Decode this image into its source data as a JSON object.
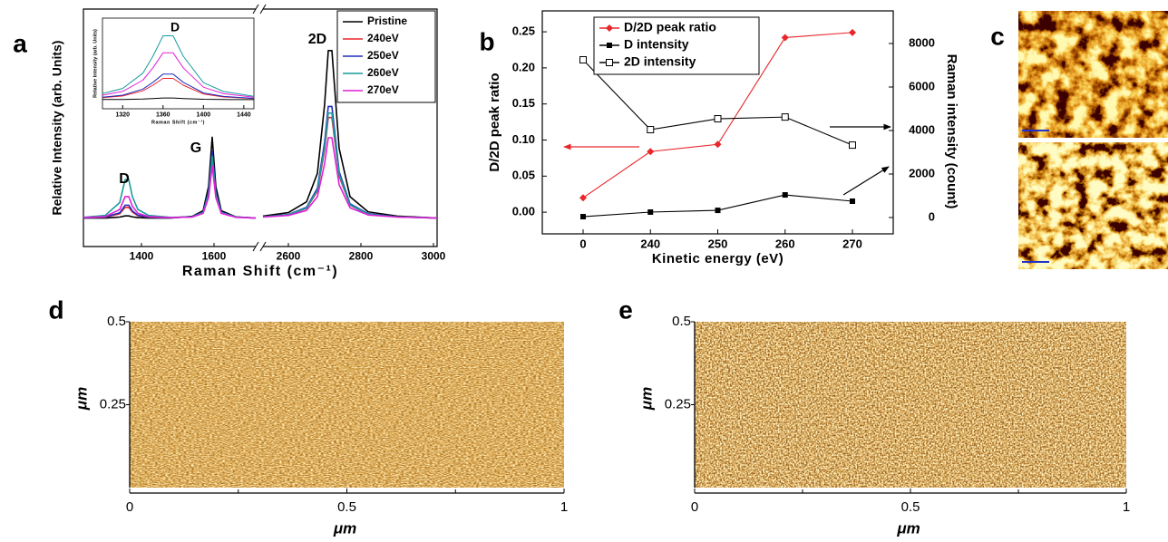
{
  "chart_data": [
    {
      "type": "line",
      "label": "a",
      "x_label": "Raman Shift (cm⁻¹)",
      "y_label": "Relative Intensity (arb. Units)",
      "x": [
        1240,
        1300,
        1340,
        1355,
        1365,
        1375,
        1390,
        1420,
        1480,
        1540,
        1570,
        1585,
        1595,
        1605,
        1620,
        1660,
        1715,
        2530,
        2600,
        2650,
        2680,
        2700,
        2710,
        2720,
        2740,
        2770,
        2820,
        2900,
        3010
      ],
      "xlim": [
        1240,
        3010
      ],
      "xbreak": [
        1715,
        2530
      ],
      "xticks": [
        1400,
        1600,
        2600,
        2800,
        3000
      ],
      "ylim": [
        0,
        1
      ],
      "annotations": [
        "D",
        "G",
        "2D"
      ],
      "legend": "upper right",
      "series": [
        {
          "name": "Pristine",
          "color": "#000000",
          "values": [
            0.12,
            0.12,
            0.124,
            0.129,
            0.129,
            0.125,
            0.122,
            0.12,
            0.12,
            0.127,
            0.151,
            0.253,
            0.46,
            0.253,
            0.151,
            0.125,
            0.12,
            0.128,
            0.143,
            0.188,
            0.308,
            0.6,
            0.825,
            0.825,
            0.413,
            0.21,
            0.146,
            0.128,
            0.12
          ]
        },
        {
          "name": "240eV",
          "color": "#e8262b",
          "values": [
            0.121,
            0.123,
            0.138,
            0.165,
            0.165,
            0.145,
            0.13,
            0.123,
            0.121,
            0.125,
            0.143,
            0.218,
            0.37,
            0.218,
            0.143,
            0.124,
            0.12,
            0.125,
            0.134,
            0.161,
            0.233,
            0.408,
            0.543,
            0.543,
            0.296,
            0.174,
            0.136,
            0.125,
            0.12
          ]
        },
        {
          "name": "250eV",
          "color": "#1f2fbf",
          "values": [
            0.121,
            0.124,
            0.142,
            0.174,
            0.174,
            0.15,
            0.132,
            0.124,
            0.121,
            0.126,
            0.145,
            0.229,
            0.4,
            0.229,
            0.145,
            0.124,
            0.12,
            0.125,
            0.135,
            0.165,
            0.245,
            0.44,
            0.59,
            0.59,
            0.315,
            0.18,
            0.138,
            0.125,
            0.12
          ]
        },
        {
          "name": "260eV",
          "color": "#1a9b9b",
          "values": [
            0.123,
            0.131,
            0.185,
            0.282,
            0.282,
            0.21,
            0.156,
            0.131,
            0.123,
            0.125,
            0.143,
            0.221,
            0.38,
            0.221,
            0.143,
            0.124,
            0.12,
            0.125,
            0.134,
            0.162,
            0.238,
            0.421,
            0.562,
            0.562,
            0.303,
            0.176,
            0.136,
            0.125,
            0.12
          ]
        },
        {
          "name": "270eV",
          "color": "#e020d8",
          "values": [
            0.122,
            0.126,
            0.156,
            0.21,
            0.21,
            0.17,
            0.14,
            0.126,
            0.122,
            0.124,
            0.14,
            0.206,
            0.34,
            0.206,
            0.14,
            0.123,
            0.12,
            0.124,
            0.131,
            0.152,
            0.21,
            0.35,
            0.458,
            0.458,
            0.26,
            0.163,
            0.133,
            0.124,
            0.12
          ]
        }
      ]
    },
    {
      "type": "line",
      "x_label": "Raman Shift (cm⁻¹)",
      "y_label": "Relative Intensity (arb. Units)",
      "x": [
        1300,
        1320,
        1340,
        1350,
        1360,
        1370,
        1380,
        1400,
        1420,
        1450
      ],
      "xlim": [
        1300,
        1450
      ],
      "xticks": [
        1320,
        1360,
        1400,
        1440
      ],
      "ylim": [
        0,
        1
      ],
      "annotations": [
        "D"
      ],
      "series": [
        {
          "color": "#000000",
          "values": [
            0.102,
            0.103,
            0.108,
            0.113,
            0.119,
            0.119,
            0.113,
            0.105,
            0.102,
            0.101
          ]
        },
        {
          "color": "#e8262b",
          "values": [
            0.123,
            0.141,
            0.198,
            0.26,
            0.335,
            0.335,
            0.26,
            0.163,
            0.13,
            0.113
          ]
        },
        {
          "color": "#1f2fbf",
          "values": [
            0.127,
            0.15,
            0.217,
            0.292,
            0.382,
            0.382,
            0.292,
            0.175,
            0.136,
            0.115
          ]
        },
        {
          "color": "#1a9b9b",
          "values": [
            0.168,
            0.224,
            0.393,
            0.58,
            0.805,
            0.805,
            0.58,
            0.288,
            0.19,
            0.138
          ]
        },
        {
          "color": "#e020d8",
          "values": [
            0.15,
            0.191,
            0.315,
            0.452,
            0.617,
            0.617,
            0.452,
            0.238,
            0.166,
            0.128
          ]
        }
      ]
    },
    {
      "type": "line",
      "label": "b",
      "x_label": "Kinetic energy (eV)",
      "y_label": "D/2D peak ratio",
      "y2_label": "Raman intensity (count)",
      "categories": [
        "0",
        "240",
        "250",
        "260",
        "270"
      ],
      "ylim": [
        -0.03,
        0.279
      ],
      "yticks": [
        {
          "value": 0,
          "label": "0.00"
        },
        {
          "value": 0.05,
          "label": "0.05"
        },
        {
          "value": 0.1,
          "label": "0.10"
        },
        {
          "value": 0.15,
          "label": "0.15"
        },
        {
          "value": 0.2,
          "label": "0.20"
        },
        {
          "value": 0.25,
          "label": "0.25"
        }
      ],
      "y2lim": [
        -750,
        9500
      ],
      "y2ticks": [
        0,
        2000,
        4000,
        6000,
        8000
      ],
      "legend": "upper left",
      "series": [
        {
          "name": "D/2D peak ratio",
          "color": "#e8262b",
          "marker": "diamond",
          "values": [
            0.02,
            0.084,
            0.094,
            0.242,
            0.249
          ]
        },
        {
          "name": "D intensity",
          "color": "#000000",
          "marker": "square",
          "axis": "y2",
          "values": [
            40,
            250,
            330,
            1040,
            750
          ]
        },
        {
          "name": "2D intensity",
          "color": "#000000",
          "marker": "open-square",
          "axis": "y2",
          "values": [
            7250,
            4040,
            4540,
            4620,
            3330
          ]
        }
      ]
    },
    {
      "type": "image",
      "label": "c"
    },
    {
      "type": "image",
      "label": "d",
      "x_label": "μm",
      "y_label": "μm",
      "xlim": [
        0,
        1
      ],
      "ylim": [
        0,
        0.5
      ],
      "xticks": [
        0,
        0.5,
        1
      ],
      "xminor": [
        0.25,
        0.75
      ],
      "yticks": [
        0.25,
        0.5
      ]
    },
    {
      "type": "image",
      "label": "e",
      "x_label": "μm",
      "y_label": "μm",
      "xlim": [
        0,
        1
      ],
      "ylim": [
        0,
        0.5
      ],
      "xticks": [
        0,
        0.5,
        1
      ],
      "xminor": [
        0.25,
        0.75
      ],
      "yticks": [
        0.25,
        0.5
      ]
    }
  ]
}
